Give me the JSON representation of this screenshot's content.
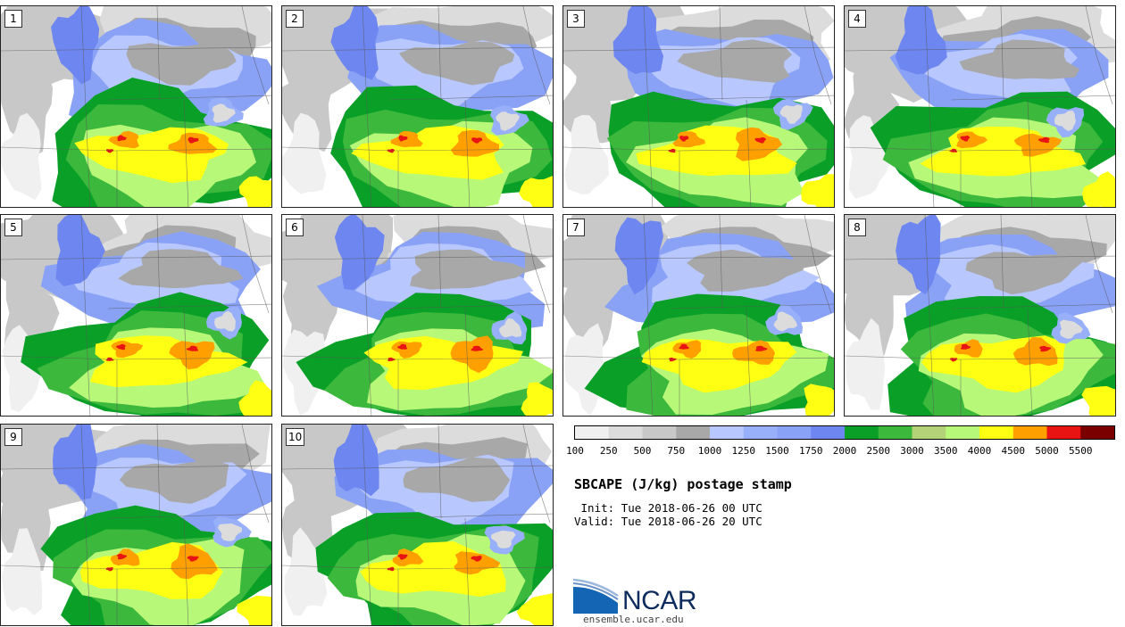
{
  "panels": [
    {
      "label": "1"
    },
    {
      "label": "2"
    },
    {
      "label": "3"
    },
    {
      "label": "4"
    },
    {
      "label": "5"
    },
    {
      "label": "6"
    },
    {
      "label": "7"
    },
    {
      "label": "8"
    },
    {
      "label": "9"
    },
    {
      "label": "10"
    }
  ],
  "colorbar": {
    "colors": [
      "#f0f0f0",
      "#dcdcdc",
      "#c8c8c8",
      "#a8a8a8",
      "#b8c8ff",
      "#98b0fa",
      "#8aa2f6",
      "#6e86f0",
      "#0aa028",
      "#3cb83c",
      "#b4d278",
      "#b8f878",
      "#ffff14",
      "#ffa000",
      "#e81414",
      "#7a0000"
    ],
    "tick_labels": [
      "100",
      "250",
      "500",
      "750",
      "1000",
      "1250",
      "1500",
      "1750",
      "2000",
      "2500",
      "3000",
      "3500",
      "4000",
      "4500",
      "5000",
      "5500"
    ]
  },
  "title": "SBCAPE (J/kg) postage stamp",
  "init_line": " Init: Tue 2018-06-26 00 UTC",
  "valid_line": "Valid: Tue 2018-06-26 20 UTC",
  "logo": {
    "text": "NCAR",
    "site": "ensemble.ucar.edu"
  }
}
